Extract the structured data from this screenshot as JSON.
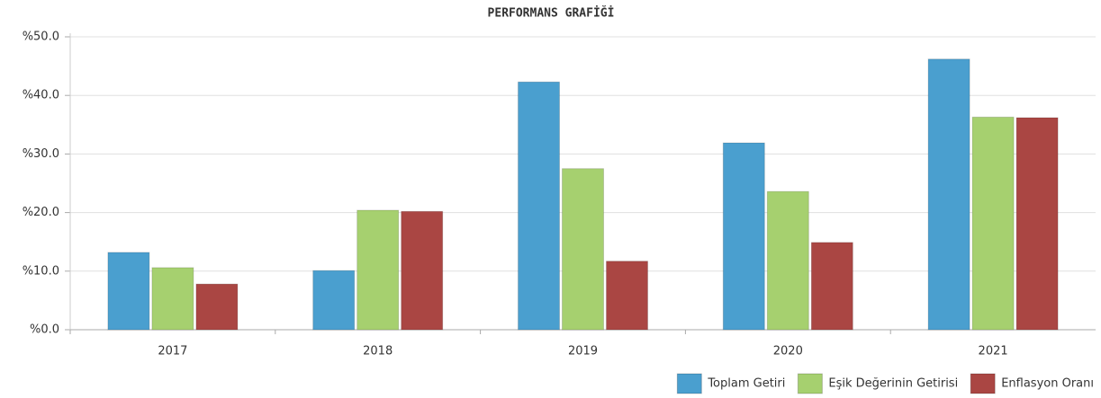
{
  "chart_data": {
    "type": "bar",
    "title": "PERFORMANS GRAFİĞİ",
    "categories": [
      "2017",
      "2018",
      "2019",
      "2020",
      "2021"
    ],
    "series": [
      {
        "name": "Toplam Getiri",
        "color": "#4a9fcf",
        "values": [
          13.2,
          10.1,
          42.3,
          31.9,
          46.2
        ]
      },
      {
        "name": "Eşik Değerinin Getirisi",
        "color": "#a6d06f",
        "values": [
          10.6,
          20.4,
          27.5,
          23.6,
          36.3
        ]
      },
      {
        "name": "Enflasyon Oranı",
        "color": "#aa4643",
        "values": [
          7.8,
          20.2,
          11.7,
          14.9,
          36.2
        ]
      }
    ],
    "ylim": [
      0,
      50
    ],
    "yticks": [
      {
        "value": 0,
        "label": "%0.0"
      },
      {
        "value": 10,
        "label": "%10.0"
      },
      {
        "value": 20,
        "label": "%20.0"
      },
      {
        "value": 30,
        "label": "%30.0"
      },
      {
        "value": 40,
        "label": "%40.0"
      },
      {
        "value": 50,
        "label": "%50.0"
      }
    ],
    "grid": true,
    "legend": "bottom-right"
  }
}
